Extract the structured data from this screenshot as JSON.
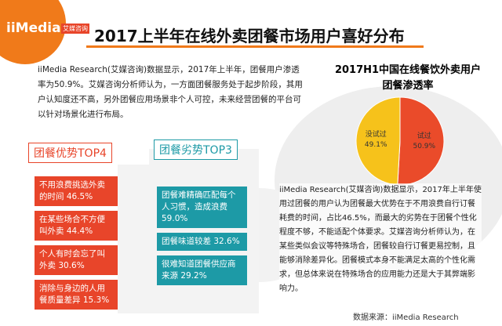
{
  "header": {
    "logo": "iiMedia",
    "logo_sub": "艾媒咨询",
    "title": "2017上半年在线外卖团餐市场用户喜好分布"
  },
  "intro": "iiMedia Research(艾媒咨询)数据显示，2017年上半年，团餐用户渗透率为50.9%。艾媒咨询分析师认为，一方面团餐服务处于起步阶段，其用户认知度还不高，另外团餐应用场景非个人可控，未来经营团餐的平台可以针对场景化进行布局。",
  "chart_data": {
    "type": "pie",
    "title": "2017H1中国在线餐饮外卖用户团餐渗透率",
    "categories": [
      "试过",
      "没试过"
    ],
    "values": [
      50.9,
      49.1
    ],
    "value_labels": [
      "50.9%",
      "49.1%"
    ],
    "colors": [
      "#ea4b2a",
      "#f6c21b"
    ]
  },
  "advantages": {
    "title": "团餐优势TOP4",
    "items": [
      "不用浪费挑选外卖的时间 46.5%",
      "在某些场合不方便叫外卖 44.4%",
      "个人有时会忘了叫外卖 30.6%",
      "消除与身边的人用餐质量差异 15.3%"
    ]
  },
  "disadvantages": {
    "title": "团餐劣势TOP3",
    "items": [
      "团餐难精确匹配每个人习惯，造成浪费 59.0%",
      "团餐味道较差 32.6%",
      "很难知道团餐供应商来源 29.2%"
    ]
  },
  "analysis": "iiMedia Research(艾媒咨询)数据显示，2017年上半年使用过团餐的用户认为团餐最大优势在于不用浪费自行订餐耗费的时间，占比46.5%，而最大的劣势在于团餐个性化程度不够，不能适配个体要求。艾媒咨询分析师认为，在某些类似会议等特殊场合，团餐较自行订餐更易控制，且能够消除差异化。团餐模式本身不能满足太高的个性化需求，但总体来说在特殊场合的应用能力还是大于其弊端影响力。",
  "source": "数据来源：iiMedia Research"
}
